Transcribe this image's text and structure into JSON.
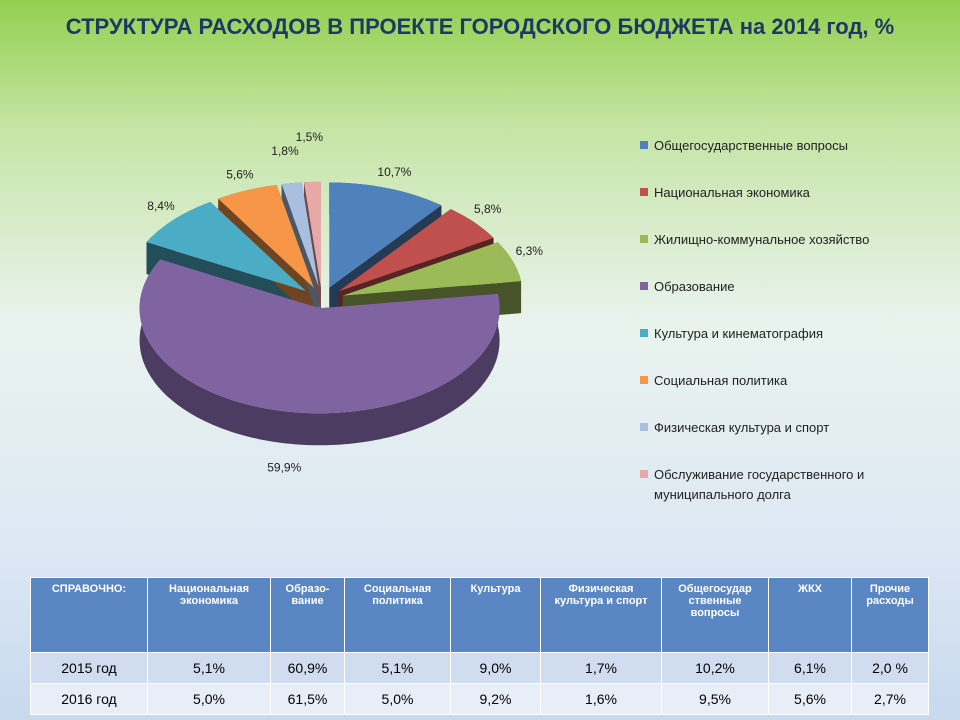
{
  "chart_data": {
    "type": "pie",
    "title": "СТРУКТУРА РАСХОДОВ В ПРОЕКТЕ ГОРОДСКОГО БЮДЖЕТА на 2014 год, %",
    "categories": [
      "Общегосударственные вопросы",
      "Национальная экономика",
      "Жилищно-коммунальное хозяйство",
      "Образование",
      "Культура и кинематография",
      "Социальная политика",
      "Физическая культура и спорт",
      "Обслуживание государственного и муниципального долга"
    ],
    "values": [
      10.7,
      5.8,
      6.3,
      59.9,
      8.4,
      5.6,
      1.8,
      1.5
    ],
    "value_labels": [
      "10,7%",
      "5,8%",
      "6,3%",
      "59,9%",
      "8,4%",
      "5,6%",
      "1,8%",
      "1,5%"
    ],
    "colors": [
      "#4f81bd",
      "#c0504d",
      "#9bbb59",
      "#8064a2",
      "#4bacc6",
      "#f79646",
      "#a9bfe0",
      "#e7a9a8"
    ],
    "legend": "right"
  },
  "table": {
    "header": [
      "СПРАВОЧНО:",
      "Национальная экономика",
      "Образо-вание",
      "Социальная политика",
      "Культура",
      "Физическая культура и спорт",
      "Общегосудар ственные вопросы",
      "ЖКХ",
      "Прочие расходы"
    ],
    "rows": [
      [
        "2015 год",
        "5,1%",
        "60,9%",
        "5,1%",
        "9,0%",
        "1,7%",
        "10,2%",
        "6,1%",
        "2,0 %"
      ],
      [
        "2016 год",
        "5,0%",
        "61,5%",
        "5,0%",
        "9,2%",
        "1,6%",
        "9,5%",
        "5,6%",
        "2,7%"
      ]
    ]
  }
}
